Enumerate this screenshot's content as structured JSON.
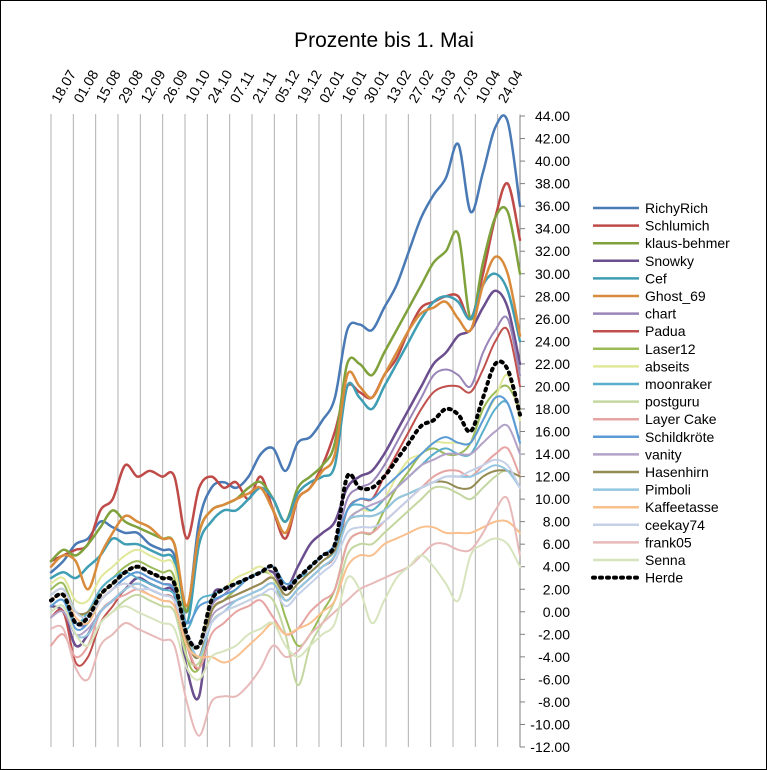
{
  "chart_data": {
    "type": "line",
    "title": "Prozente bis 1. Mai",
    "xlabel": "",
    "ylabel": "",
    "ylim": [
      -12,
      44
    ],
    "ytick_step": 2,
    "grid": "vertical",
    "legend_position": "right",
    "x_tick_labels": [
      "18.07",
      "01.08",
      "15.08",
      "29.08",
      "12.09",
      "26.09",
      "10.10",
      "24.10",
      "07.11",
      "21.11",
      "05.12",
      "19.12",
      "02.01",
      "16.01",
      "30.01",
      "13.02",
      "27.02",
      "13.03",
      "27.03",
      "10.04",
      "24.04"
    ],
    "series": [
      {
        "name": "RichyRich",
        "color": "#4a7ab5",
        "width": 2.5,
        "values": [
          3.5,
          4.5,
          6,
          6.5,
          8,
          7.5,
          7,
          7,
          6,
          5.5,
          5,
          0,
          8,
          11,
          11.5,
          11,
          12,
          14,
          14.5,
          12.5,
          15,
          15.5,
          17,
          19,
          25,
          25.5,
          25,
          27,
          29,
          32,
          35,
          37,
          38.5,
          41.5,
          35.5,
          39,
          43,
          43.5,
          36
        ]
      },
      {
        "name": "Schlumich",
        "color": "#be4b48",
        "width": 2.5,
        "values": [
          4.5,
          5,
          5.5,
          6,
          9,
          10,
          13,
          12,
          12.5,
          12,
          12,
          6.5,
          11,
          12,
          11,
          11.5,
          10,
          12,
          9,
          6.5,
          10,
          11,
          13,
          16,
          20,
          19.5,
          19,
          21,
          22.5,
          25,
          27,
          27.5,
          28,
          28,
          26,
          30,
          35,
          38,
          33
        ]
      },
      {
        "name": "klaus-behmer",
        "color": "#7fa23c",
        "width": 2.5,
        "values": [
          4.5,
          5.5,
          5,
          6,
          7.5,
          9,
          8,
          7.5,
          7,
          6.5,
          6,
          0,
          7,
          9,
          9.5,
          10,
          11,
          11.5,
          10,
          8,
          11,
          12,
          13,
          15,
          22,
          22,
          21,
          23,
          25,
          27,
          29,
          31,
          32,
          33.5,
          26,
          31,
          35,
          35.5,
          30
        ]
      },
      {
        "name": "Snowky",
        "color": "#6a4e8d",
        "width": 2.5,
        "values": [
          0.5,
          0,
          -3,
          -2,
          0,
          1,
          2,
          3,
          2.5,
          2,
          1.5,
          -5,
          -7.5,
          1,
          2,
          2.5,
          3,
          3.5,
          3.5,
          2,
          4,
          6,
          7,
          8,
          11,
          12,
          12.5,
          14,
          16,
          18,
          20,
          22,
          23,
          24.5,
          25,
          27,
          28.5,
          27,
          22
        ]
      },
      {
        "name": "Cef",
        "color": "#3f9eb3",
        "width": 2.5,
        "values": [
          3,
          3.5,
          3,
          4,
          5,
          6.5,
          6,
          6,
          5.5,
          5,
          4.5,
          -1,
          6,
          8,
          9,
          9,
          10,
          11,
          10,
          8,
          10.5,
          11.5,
          12,
          13,
          20,
          19,
          18,
          20,
          22,
          24,
          26,
          27.5,
          28,
          27.5,
          26,
          29,
          30,
          28.5,
          24
        ]
      },
      {
        "name": "Ghost_69",
        "color": "#d98b3c",
        "width": 2.5,
        "values": [
          4,
          5,
          4.5,
          2,
          5,
          7,
          8.5,
          8,
          7.5,
          6.5,
          6,
          0.5,
          7,
          9,
          9.5,
          10,
          10.5,
          11,
          9,
          7,
          10,
          11,
          12.5,
          14,
          21,
          20,
          19,
          21,
          23,
          25,
          26.5,
          27,
          27.5,
          26,
          25,
          29,
          31.5,
          30,
          24.5
        ]
      },
      {
        "name": "chart",
        "color": "#9a85b8",
        "width": 2,
        "values": [
          1,
          1.5,
          -1,
          -1,
          1,
          2,
          3,
          3.5,
          3,
          2.5,
          2,
          -2,
          -3,
          0.5,
          1.5,
          2.5,
          3,
          3.5,
          4,
          2,
          3,
          4,
          5,
          6,
          10,
          11,
          11.5,
          13,
          15,
          17,
          19,
          21,
          21.5,
          21,
          20,
          23,
          25,
          26,
          21
        ]
      },
      {
        "name": "Padua",
        "color": "#c0504d",
        "width": 2,
        "values": [
          -0.5,
          0,
          -4.5,
          -4,
          -1,
          0.5,
          2,
          2.5,
          2,
          1.5,
          1,
          -3,
          -5,
          0,
          1,
          1.5,
          2,
          2.5,
          3,
          1,
          2,
          3,
          4,
          5,
          9,
          10,
          10,
          12,
          14,
          16,
          18,
          19.5,
          20,
          20,
          19.5,
          21.5,
          24,
          25,
          20
        ]
      },
      {
        "name": "Laser12",
        "color": "#9bbb59",
        "width": 2,
        "values": [
          2,
          2.5,
          0,
          0,
          2,
          3,
          4,
          4.5,
          4,
          3.5,
          3,
          -4,
          -5,
          0,
          1,
          2,
          3,
          3.5,
          3,
          -0.5,
          -3,
          -2,
          0,
          2,
          6,
          7,
          7,
          9,
          11,
          12.5,
          14,
          14.5,
          14,
          14,
          15,
          18,
          19.5,
          20,
          18
        ]
      },
      {
        "name": "abseits",
        "color": "#e2e89a",
        "width": 2,
        "values": [
          2.5,
          3,
          1,
          1,
          3,
          4,
          5,
          5.5,
          5,
          4.5,
          4,
          -2,
          -3,
          1,
          2,
          3,
          3.5,
          4,
          3,
          1,
          2,
          3,
          4,
          5,
          8,
          9,
          9,
          10,
          12,
          13.5,
          14,
          15,
          15,
          15,
          15,
          17,
          19,
          21,
          17
        ]
      },
      {
        "name": "moonraker",
        "color": "#5ab0cc",
        "width": 2,
        "values": [
          1,
          1.5,
          -1,
          0,
          2,
          3,
          3.5,
          3,
          2.5,
          2,
          1.5,
          -1.5,
          1,
          1.5,
          2,
          2.5,
          3,
          3.5,
          4,
          2.5,
          3,
          3.5,
          4.5,
          5.5,
          9,
          9.5,
          9,
          10,
          11,
          12,
          13,
          14,
          14.5,
          14,
          14,
          16,
          18,
          18.5,
          15
        ]
      },
      {
        "name": "postguru",
        "color": "#c4d7a0",
        "width": 2,
        "values": [
          0,
          0.5,
          -2,
          -3,
          -1,
          0,
          1,
          1.5,
          1,
          0.5,
          0,
          -4,
          -4.5,
          -1,
          0,
          0.5,
          1,
          1.5,
          1,
          -2,
          -6.5,
          -3,
          -1,
          1,
          5,
          6,
          6,
          7,
          8,
          9,
          10,
          11,
          11,
          10.5,
          10,
          11,
          12,
          12.5,
          11
        ]
      },
      {
        "name": "Layer Cake",
        "color": "#e6a5a3",
        "width": 2,
        "values": [
          -3,
          -2,
          -4,
          -3,
          0,
          1,
          1.5,
          2,
          1.5,
          1,
          0.5,
          -3,
          -5,
          -2,
          -1,
          0,
          0.5,
          1,
          -0.5,
          -2,
          -1.5,
          0,
          1,
          2,
          6,
          7,
          7,
          8,
          9,
          10,
          11,
          12,
          12.5,
          12.5,
          12,
          13,
          14,
          14.5,
          12
        ]
      },
      {
        "name": "Schildkröte",
        "color": "#5b9bd5",
        "width": 2,
        "values": [
          0.5,
          1,
          -1.5,
          -1,
          1,
          2,
          3,
          3.5,
          3,
          2.5,
          2,
          -1,
          0.5,
          1,
          1.5,
          2,
          3,
          3.5,
          4,
          2.5,
          3,
          4,
          5,
          6,
          9,
          10,
          10,
          11,
          12,
          13,
          14,
          15,
          15.5,
          15,
          15,
          17,
          19,
          18.5,
          15
        ]
      },
      {
        "name": "vanity",
        "color": "#b3a2c7",
        "width": 2,
        "values": [
          -0.5,
          0,
          -2,
          -1.5,
          0,
          1,
          2,
          2.5,
          2,
          1.5,
          1,
          -2,
          -4,
          -0.5,
          0.5,
          1,
          1.5,
          2,
          2.5,
          1,
          2,
          3,
          4,
          5,
          8,
          9,
          9.5,
          10,
          11,
          12,
          13,
          13.5,
          14,
          14,
          14,
          15,
          16,
          16.5,
          14
        ]
      },
      {
        "name": "Hasenhirn",
        "color": "#948a54",
        "width": 2,
        "values": [
          1.5,
          2,
          0,
          0,
          1.5,
          2.5,
          3.5,
          4,
          3.5,
          3,
          2.5,
          -2.5,
          -4,
          0,
          1,
          1.5,
          2,
          2.5,
          3,
          1.5,
          2.5,
          3.5,
          4.5,
          5.5,
          8,
          8.5,
          8.5,
          9,
          10,
          10.5,
          11,
          11.5,
          11.5,
          11,
          11,
          12,
          12.5,
          12.5,
          12
        ]
      },
      {
        "name": "Pimboli",
        "color": "#93c6e0",
        "width": 2,
        "values": [
          0,
          0.5,
          -2,
          -2,
          0,
          1,
          2,
          2.5,
          2,
          1.5,
          1,
          -2,
          -4,
          -1,
          0,
          1,
          1.5,
          2,
          2.5,
          1,
          2,
          3,
          4,
          5,
          8,
          8.5,
          8.5,
          9,
          10,
          10.5,
          11,
          11.5,
          12,
          12,
          12,
          12.5,
          13,
          12.5,
          11
        ]
      },
      {
        "name": "Kaffeetasse",
        "color": "#f9c08d",
        "width": 2,
        "values": [
          1,
          1.5,
          -0.5,
          -1,
          1,
          2,
          2.5,
          2,
          1.5,
          1,
          0.5,
          -3,
          -4,
          -4,
          -4.5,
          -4,
          -3,
          -2,
          -1,
          -2,
          -1.5,
          -1,
          0,
          1,
          4,
          5,
          5,
          6,
          6.5,
          7,
          7.5,
          7.5,
          7,
          7,
          7,
          7.5,
          8,
          8,
          7
        ]
      },
      {
        "name": "ceekay74",
        "color": "#c5d0e8",
        "width": 2,
        "values": [
          1.5,
          2,
          0,
          -0.5,
          1,
          2,
          2.5,
          2,
          2,
          1.5,
          1,
          -2,
          -3,
          -1,
          0,
          0.5,
          1,
          1.5,
          2,
          0.5,
          1.5,
          2.5,
          3.5,
          4.5,
          7,
          7.5,
          7.5,
          8,
          9,
          10,
          11,
          11.5,
          12,
          12,
          12.5,
          13,
          13.5,
          13,
          11
        ]
      },
      {
        "name": "frank05",
        "color": "#e7b9b8",
        "width": 2,
        "values": [
          -1.5,
          -1.5,
          -5,
          -6,
          -3,
          -2,
          -1,
          -1.5,
          -2,
          -2.5,
          -3,
          -8,
          -11,
          -8,
          -7.5,
          -7.5,
          -6.5,
          -5,
          -3,
          -4,
          -3.5,
          -2,
          -1,
          0,
          1,
          2,
          2.5,
          3,
          3.5,
          4,
          5,
          6,
          6,
          5.5,
          5.5,
          7,
          9,
          10,
          5
        ]
      },
      {
        "name": "Senna",
        "color": "#d7e4bd",
        "width": 2,
        "values": [
          0,
          0.5,
          -2,
          -3,
          -1,
          0,
          0.5,
          0,
          -0.5,
          -1,
          -1.5,
          -5,
          -6,
          -4,
          -3.5,
          -3,
          -2,
          -1.5,
          -1,
          -3,
          -4,
          -3,
          -2,
          -1,
          3,
          2,
          -1,
          1,
          3,
          4,
          5,
          4,
          2.5,
          1,
          5,
          6,
          6.5,
          6,
          4
        ]
      },
      {
        "name": "Herde",
        "color": "#000000",
        "width": 4,
        "dotted": true,
        "values": [
          1,
          1.5,
          -1,
          -0.5,
          1.5,
          2.5,
          3.5,
          4,
          3.5,
          3,
          2.5,
          -2,
          -3,
          1,
          2,
          2.5,
          3,
          3.5,
          4,
          2,
          3,
          4,
          5,
          6,
          12,
          11,
          11,
          12,
          13.5,
          15,
          16.5,
          17,
          18,
          17.5,
          16,
          19,
          22,
          21.5,
          17.5
        ]
      }
    ]
  }
}
